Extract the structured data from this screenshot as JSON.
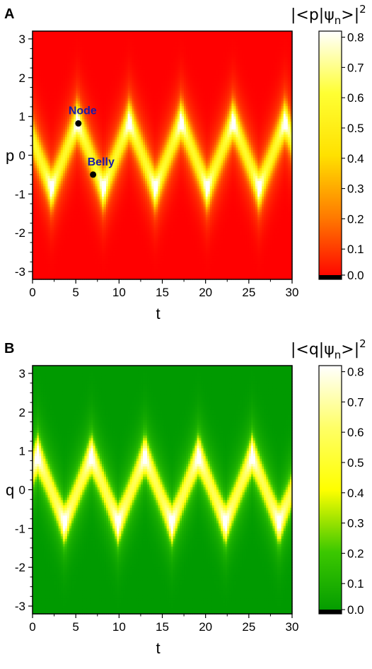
{
  "chart_data": [
    {
      "type": "heatmap",
      "panel_label": "A",
      "xlabel": "t",
      "ylabel": "p",
      "xlim": [
        0,
        30
      ],
      "ylim": [
        -3.2,
        3.2
      ],
      "x_ticks": [
        "0",
        "5",
        "10",
        "15",
        "20",
        "25",
        "30"
      ],
      "x_tick_values": [
        0,
        5,
        10,
        15,
        20,
        25,
        30
      ],
      "y_ticks": [
        "-3",
        "-2",
        "-1",
        "0",
        "1",
        "2",
        "3"
      ],
      "y_tick_values": [
        -3,
        -2,
        -1,
        0,
        1,
        2,
        3
      ],
      "colorbar": {
        "title": "|<p|ψn>|2",
        "title_main": "|<p|ψ",
        "title_sub": "n",
        "title_end": ">|",
        "title_sup": "2",
        "ticks": [
          "0.0",
          "0.1",
          "0.2",
          "0.3",
          "0.4",
          "0.5",
          "0.6",
          "0.7",
          "0.8"
        ],
        "tick_values": [
          0,
          0.1,
          0.2,
          0.3,
          0.4,
          0.5,
          0.6,
          0.7,
          0.8
        ],
        "range": [
          0,
          0.82
        ],
        "colormap": "red-yellow-white",
        "stops": [
          "#ff0000",
          "#ff7a00",
          "#ffe100",
          "#ffff33",
          "#ffffff"
        ]
      },
      "pattern": {
        "description_values": "zigzag density peaks between p=+0.9 and p=-0.9",
        "period": 6.0,
        "first_trough_t": 2.2,
        "amplitude": 0.9,
        "peak_value": 0.8
      },
      "annotations": [
        {
          "label": "Node",
          "t": 5.3,
          "value": 0.82
        },
        {
          "label": "Belly",
          "t": 7.0,
          "value": -0.5
        }
      ]
    },
    {
      "type": "heatmap",
      "panel_label": "B",
      "xlabel": "t",
      "ylabel": "q",
      "xlim": [
        0,
        30
      ],
      "ylim": [
        -3.2,
        3.2
      ],
      "x_ticks": [
        "0",
        "5",
        "10",
        "15",
        "20",
        "25",
        "30"
      ],
      "x_tick_values": [
        0,
        5,
        10,
        15,
        20,
        25,
        30
      ],
      "y_ticks": [
        "-3",
        "-2",
        "-1",
        "0",
        "1",
        "2",
        "3"
      ],
      "y_tick_values": [
        -3,
        -2,
        -1,
        0,
        1,
        2,
        3
      ],
      "colorbar": {
        "title": "|<q|ψn>|2",
        "title_main": "|<q|ψ",
        "title_sub": "n",
        "title_end": ">|",
        "title_sup": "2",
        "ticks": [
          "0.0",
          "0.1",
          "0.2",
          "0.3",
          "0.4",
          "0.5",
          "0.6",
          "0.7",
          "0.8"
        ],
        "tick_values": [
          0,
          0.1,
          0.2,
          0.3,
          0.4,
          0.5,
          0.6,
          0.7,
          0.8
        ],
        "range": [
          0,
          0.82
        ],
        "colormap": "green-yellow-white",
        "stops": [
          "#009a00",
          "#3cc800",
          "#ffff00",
          "#ffff66",
          "#ffffff"
        ]
      },
      "pattern": {
        "period": 6.2,
        "first_trough_t": 3.7,
        "amplitude": 0.9,
        "peak_value": 0.8
      },
      "annotations": []
    }
  ]
}
